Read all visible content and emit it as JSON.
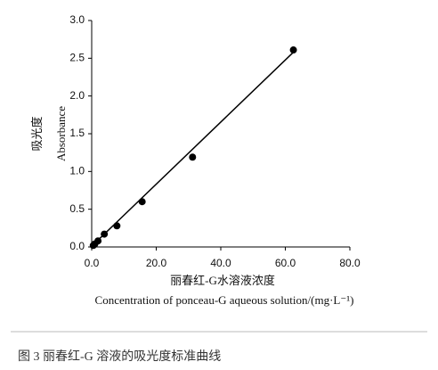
{
  "chart_data": {
    "type": "scatter",
    "x_label_cn": "丽春红-G水溶液浓度",
    "x_label": "Concentration of ponceau-G aqueous solution/(mg·L⁻¹)",
    "y_label_cn": "吸光度",
    "y_label": "Absorbance",
    "caption": "图 3   丽春红-G 溶液的吸光度标准曲线",
    "x": [
      0.49,
      0.98,
      1.95,
      3.91,
      7.81,
      15.63,
      31.25,
      62.5
    ],
    "values": [
      0.02,
      0.04,
      0.08,
      0.17,
      0.28,
      0.6,
      1.19,
      2.61
    ],
    "color": "#000000",
    "trendline": {
      "x": [
        0,
        62.5
      ],
      "values": [
        0.01,
        2.58
      ]
    },
    "xlim": [
      0,
      80
    ],
    "ylim": [
      0,
      3
    ],
    "xticks": [
      {
        "value": 0,
        "label": "0.0"
      },
      {
        "value": 20,
        "label": "20.0"
      },
      {
        "value": 40,
        "label": "40.0"
      },
      {
        "value": 60,
        "label": "60.0"
      },
      {
        "value": 80,
        "label": "80.0"
      }
    ],
    "yticks": [
      {
        "value": 0,
        "label": "0.0"
      },
      {
        "value": 0.5,
        "label": "0.5"
      },
      {
        "value": 1,
        "label": "1.0"
      },
      {
        "value": 1.5,
        "label": "1.5"
      },
      {
        "value": 2,
        "label": "2.0"
      },
      {
        "value": 2.5,
        "label": "2.5"
      },
      {
        "value": 3,
        "label": "3.0"
      }
    ]
  }
}
